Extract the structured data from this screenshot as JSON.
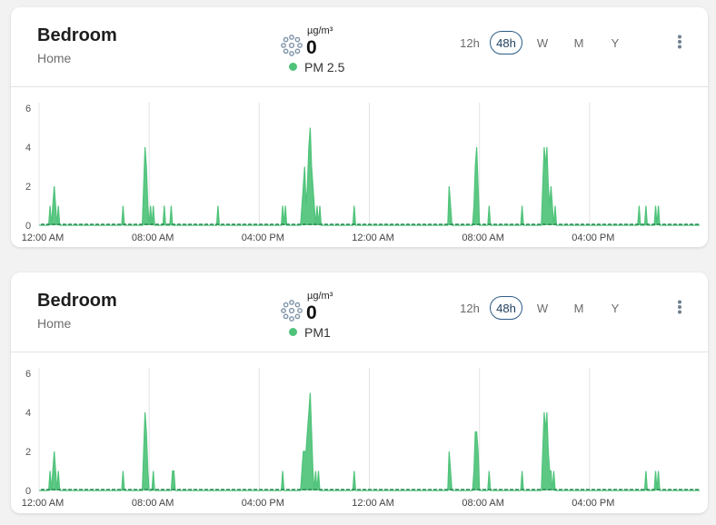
{
  "colors": {
    "series": "#4fc37a",
    "active_border": "#2c5d86"
  },
  "cards": [
    {
      "title": "Bedroom",
      "subtitle": "Home",
      "unit": "µg/m³",
      "value": "0",
      "metric": "PM 2.5",
      "icon": "particles-icon",
      "ranges": [
        "12h",
        "48h",
        "W",
        "M",
        "Y"
      ],
      "active_range": "48h",
      "menu_icon": "kebab-menu-icon"
    },
    {
      "title": "Bedroom",
      "subtitle": "Home",
      "unit": "µg/m³",
      "value": "0",
      "metric": "PM1",
      "icon": "particles-icon",
      "ranges": [
        "12h",
        "48h",
        "W",
        "M",
        "Y"
      ],
      "active_range": "48h",
      "menu_icon": "kebab-menu-icon"
    }
  ],
  "chart_data": [
    {
      "type": "area",
      "title": "",
      "ylim": [
        0,
        6
      ],
      "yticks": [
        0,
        2,
        4,
        6
      ],
      "xlim": [
        0,
        48
      ],
      "xticks": [
        {
          "t": 0,
          "label": "12:00 AM"
        },
        {
          "t": 8,
          "label": "08:00 AM"
        },
        {
          "t": 16,
          "label": "04:00 PM"
        },
        {
          "t": 24,
          "label": "12:00 AM"
        },
        {
          "t": 32,
          "label": "08:00 AM"
        },
        {
          "t": 40,
          "label": "04:00 PM"
        }
      ],
      "series": [
        {
          "values": [
            [
              0,
              0
            ],
            [
              0.7,
              0
            ],
            [
              0.8,
              1
            ],
            [
              0.9,
              0
            ],
            [
              1.0,
              1
            ],
            [
              1.1,
              2
            ],
            [
              1.2,
              1
            ],
            [
              1.3,
              0
            ],
            [
              1.4,
              1
            ],
            [
              1.5,
              0
            ],
            [
              6.0,
              0
            ],
            [
              6.1,
              1
            ],
            [
              6.2,
              0
            ],
            [
              7.5,
              0
            ],
            [
              7.6,
              2
            ],
            [
              7.7,
              4
            ],
            [
              7.8,
              3
            ],
            [
              7.9,
              1
            ],
            [
              8.0,
              0
            ],
            [
              8.1,
              1
            ],
            [
              8.2,
              0
            ],
            [
              8.3,
              1
            ],
            [
              8.4,
              0
            ],
            [
              9.0,
              0
            ],
            [
              9.1,
              1
            ],
            [
              9.2,
              0
            ],
            [
              9.5,
              0
            ],
            [
              9.6,
              1
            ],
            [
              9.7,
              0
            ],
            [
              12.9,
              0
            ],
            [
              13.0,
              1
            ],
            [
              13.1,
              0
            ],
            [
              17.6,
              0
            ],
            [
              17.7,
              1
            ],
            [
              17.8,
              0
            ],
            [
              17.9,
              1
            ],
            [
              18.0,
              0
            ],
            [
              19.0,
              0
            ],
            [
              19.1,
              1
            ],
            [
              19.2,
              2
            ],
            [
              19.3,
              3
            ],
            [
              19.4,
              1
            ],
            [
              19.5,
              2
            ],
            [
              19.6,
              4
            ],
            [
              19.7,
              5
            ],
            [
              19.8,
              3
            ],
            [
              19.9,
              2
            ],
            [
              20.0,
              1
            ],
            [
              20.1,
              0
            ],
            [
              20.2,
              1
            ],
            [
              20.3,
              0
            ],
            [
              20.4,
              1
            ],
            [
              20.5,
              0
            ],
            [
              22.8,
              0
            ],
            [
              22.9,
              1
            ],
            [
              23.0,
              0
            ],
            [
              29.7,
              0
            ],
            [
              29.8,
              2
            ],
            [
              29.9,
              1
            ],
            [
              30.0,
              0
            ],
            [
              31.5,
              0
            ],
            [
              31.6,
              1
            ],
            [
              31.7,
              3
            ],
            [
              31.8,
              4
            ],
            [
              31.9,
              2
            ],
            [
              32.0,
              0
            ],
            [
              32.6,
              0
            ],
            [
              32.7,
              1
            ],
            [
              32.8,
              0
            ],
            [
              35.0,
              0
            ],
            [
              35.1,
              1
            ],
            [
              35.2,
              0
            ],
            [
              36.5,
              0
            ],
            [
              36.6,
              2
            ],
            [
              36.7,
              4
            ],
            [
              36.8,
              3
            ],
            [
              36.9,
              4
            ],
            [
              37.0,
              2
            ],
            [
              37.1,
              1
            ],
            [
              37.2,
              2
            ],
            [
              37.3,
              1
            ],
            [
              37.4,
              0
            ],
            [
              37.5,
              1
            ],
            [
              37.6,
              0
            ],
            [
              43.5,
              0
            ],
            [
              43.6,
              1
            ],
            [
              43.7,
              0
            ],
            [
              44.0,
              0
            ],
            [
              44.1,
              1
            ],
            [
              44.2,
              0
            ],
            [
              44.7,
              0
            ],
            [
              44.8,
              1
            ],
            [
              44.9,
              0
            ],
            [
              45.0,
              1
            ],
            [
              45.1,
              0
            ],
            [
              48,
              0
            ]
          ]
        }
      ]
    },
    {
      "type": "area",
      "title": "",
      "ylim": [
        0,
        6
      ],
      "yticks": [
        0,
        2,
        4,
        6
      ],
      "xlim": [
        0,
        48
      ],
      "xticks": [
        {
          "t": 0,
          "label": "12:00 AM"
        },
        {
          "t": 8,
          "label": "08:00 AM"
        },
        {
          "t": 16,
          "label": "04:00 PM"
        },
        {
          "t": 24,
          "label": "12:00 AM"
        },
        {
          "t": 32,
          "label": "08:00 AM"
        },
        {
          "t": 40,
          "label": "04:00 PM"
        }
      ],
      "series": [
        {
          "values": [
            [
              0,
              0
            ],
            [
              0.7,
              0
            ],
            [
              0.8,
              1
            ],
            [
              0.9,
              0
            ],
            [
              1.0,
              1
            ],
            [
              1.1,
              2
            ],
            [
              1.2,
              1
            ],
            [
              1.3,
              0
            ],
            [
              1.4,
              1
            ],
            [
              1.5,
              0
            ],
            [
              6.0,
              0
            ],
            [
              6.1,
              1
            ],
            [
              6.2,
              0
            ],
            [
              7.5,
              0
            ],
            [
              7.6,
              2
            ],
            [
              7.7,
              4
            ],
            [
              7.8,
              3
            ],
            [
              7.9,
              1
            ],
            [
              8.0,
              0
            ],
            [
              8.2,
              0
            ],
            [
              8.3,
              1
            ],
            [
              8.4,
              0
            ],
            [
              9.6,
              0
            ],
            [
              9.7,
              1
            ],
            [
              9.8,
              1
            ],
            [
              9.9,
              0
            ],
            [
              17.6,
              0
            ],
            [
              17.7,
              1
            ],
            [
              17.8,
              0
            ],
            [
              19.0,
              0
            ],
            [
              19.1,
              1
            ],
            [
              19.2,
              2
            ],
            [
              19.3,
              2
            ],
            [
              19.4,
              2
            ],
            [
              19.5,
              3
            ],
            [
              19.6,
              4
            ],
            [
              19.7,
              5
            ],
            [
              19.8,
              3
            ],
            [
              19.9,
              1
            ],
            [
              20.0,
              0
            ],
            [
              20.1,
              1
            ],
            [
              20.2,
              0
            ],
            [
              20.3,
              1
            ],
            [
              20.4,
              0
            ],
            [
              22.8,
              0
            ],
            [
              22.9,
              1
            ],
            [
              23.0,
              0
            ],
            [
              29.7,
              0
            ],
            [
              29.8,
              2
            ],
            [
              29.9,
              1
            ],
            [
              30.0,
              0
            ],
            [
              31.5,
              0
            ],
            [
              31.6,
              1
            ],
            [
              31.7,
              3
            ],
            [
              31.8,
              3
            ],
            [
              31.9,
              2
            ],
            [
              32.0,
              0
            ],
            [
              32.6,
              0
            ],
            [
              32.7,
              1
            ],
            [
              32.8,
              0
            ],
            [
              35.0,
              0
            ],
            [
              35.1,
              1
            ],
            [
              35.2,
              0
            ],
            [
              36.5,
              0
            ],
            [
              36.6,
              2
            ],
            [
              36.7,
              4
            ],
            [
              36.8,
              3
            ],
            [
              36.9,
              4
            ],
            [
              37.0,
              2
            ],
            [
              37.1,
              1
            ],
            [
              37.2,
              1
            ],
            [
              37.3,
              0
            ],
            [
              37.4,
              1
            ],
            [
              37.5,
              0
            ],
            [
              44.0,
              0
            ],
            [
              44.1,
              1
            ],
            [
              44.2,
              0
            ],
            [
              44.7,
              0
            ],
            [
              44.8,
              1
            ],
            [
              44.9,
              0
            ],
            [
              45.0,
              1
            ],
            [
              45.1,
              0
            ],
            [
              48,
              0
            ]
          ]
        }
      ]
    }
  ]
}
